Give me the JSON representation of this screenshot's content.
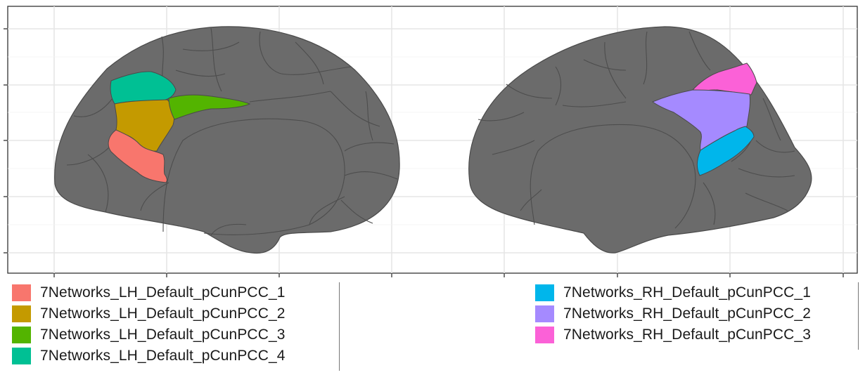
{
  "chart_data": {
    "type": "brain_atlas_surface",
    "views": [
      "left hemisphere medial",
      "right hemisphere medial"
    ],
    "grid": true,
    "legend_placement": "bottom",
    "base_color": "#6b6b6b",
    "outline_color": "#4a4a4a",
    "legend": {
      "left": [
        {
          "label": "7Networks_LH_Default_pCunPCC_1",
          "color": "#f8766d"
        },
        {
          "label": "7Networks_LH_Default_pCunPCC_2",
          "color": "#c49a00"
        },
        {
          "label": "7Networks_LH_Default_pCunPCC_3",
          "color": "#53b400"
        },
        {
          "label": "7Networks_LH_Default_pCunPCC_4",
          "color": "#00c094"
        }
      ],
      "right": [
        {
          "label": "7Networks_RH_Default_pCunPCC_1",
          "color": "#00b6eb"
        },
        {
          "label": "7Networks_RH_Default_pCunPCC_2",
          "color": "#a58aff"
        },
        {
          "label": "7Networks_RH_Default_pCunPCC_3",
          "color": "#fb61d7"
        }
      ]
    }
  }
}
